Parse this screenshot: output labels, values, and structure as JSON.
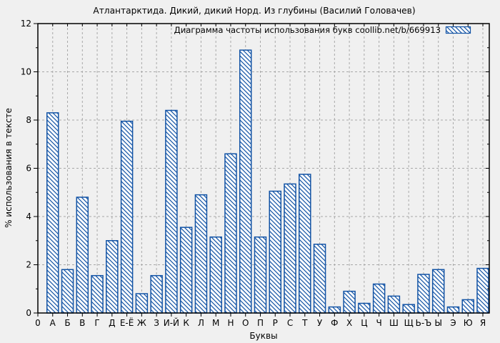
{
  "axes": {
    "origin_label": "0",
    "y_tick_labels": [
      "0",
      "2",
      "4",
      "6",
      "8",
      "10",
      "12"
    ],
    "y_minor_ticks": [
      1,
      3,
      5,
      7,
      9,
      11
    ]
  },
  "colors": {
    "bar_line": "#1253a5",
    "bar_fill": "#ffffff",
    "grid": "#a8a8a8",
    "axis": "#000000",
    "background": "#f0f0f0",
    "text": "#000000"
  },
  "chart_data": {
    "type": "bar",
    "title": "Атлантарктида. Дикий, дикий Норд. Из глубины (Василий Головачев)",
    "legend": "Диаграмма частоты использования букв coollib.net/b/669913",
    "legend_position": "top-right-inside",
    "xlabel": "Буквы",
    "ylabel": "% использования в тексте",
    "ylim": [
      0,
      12
    ],
    "y_major_step": 2,
    "grid": true,
    "bar_style": "blue-diagonal-hatch-on-white",
    "categories": [
      "А",
      "Б",
      "В",
      "Г",
      "Д",
      "Е-Ё",
      "Ж",
      "З",
      "И-Й",
      "К",
      "Л",
      "М",
      "Н",
      "О",
      "П",
      "Р",
      "С",
      "Т",
      "У",
      "Ф",
      "Х",
      "Ц",
      "Ч",
      "Ш",
      "Щ",
      "Ь-Ъ",
      "Ы",
      "Э",
      "Ю",
      "Я"
    ],
    "values": [
      8.3,
      1.8,
      4.8,
      1.55,
      3.0,
      7.95,
      0.8,
      1.55,
      8.4,
      3.55,
      4.9,
      3.15,
      6.6,
      10.9,
      3.15,
      5.05,
      5.35,
      5.75,
      2.85,
      0.25,
      0.9,
      0.4,
      1.2,
      0.7,
      0.35,
      1.6,
      1.8,
      0.25,
      0.55,
      1.85
    ]
  }
}
